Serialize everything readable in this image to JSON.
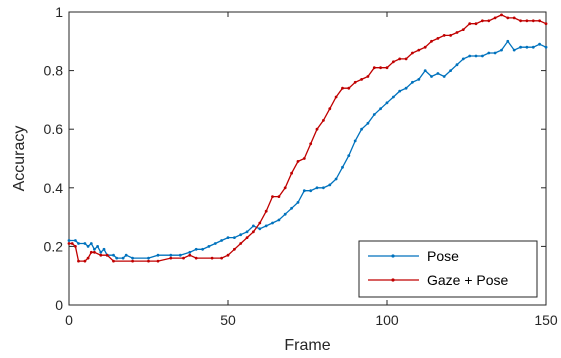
{
  "chart_data": {
    "type": "line",
    "xlabel": "Frame",
    "ylabel": "Accuracy",
    "xlim": [
      0,
      150
    ],
    "ylim": [
      0,
      1
    ],
    "xticks": [
      0,
      50,
      100,
      150
    ],
    "xtick_labels": [
      "0",
      "50",
      "100",
      "150"
    ],
    "yticks": [
      0,
      0.2,
      0.4,
      0.6,
      0.8,
      1
    ],
    "ytick_labels": [
      "0",
      "0.2",
      "0.4",
      "0.6",
      "0.8",
      "1"
    ],
    "grid": false,
    "legend_position": "bottom-right",
    "series": [
      {
        "name": "Pose",
        "color": "#0072BD",
        "points": [
          [
            0,
            0.22
          ],
          [
            2,
            0.22
          ],
          [
            3,
            0.21
          ],
          [
            5,
            0.21
          ],
          [
            6,
            0.2
          ],
          [
            7,
            0.21
          ],
          [
            8,
            0.19
          ],
          [
            9,
            0.2
          ],
          [
            10,
            0.18
          ],
          [
            11,
            0.19
          ],
          [
            12,
            0.17
          ],
          [
            14,
            0.17
          ],
          [
            15,
            0.16
          ],
          [
            17,
            0.16
          ],
          [
            18,
            0.17
          ],
          [
            20,
            0.16
          ],
          [
            25,
            0.16
          ],
          [
            28,
            0.17
          ],
          [
            32,
            0.17
          ],
          [
            35,
            0.17
          ],
          [
            38,
            0.18
          ],
          [
            40,
            0.19
          ],
          [
            42,
            0.19
          ],
          [
            44,
            0.2
          ],
          [
            46,
            0.21
          ],
          [
            48,
            0.22
          ],
          [
            50,
            0.23
          ],
          [
            52,
            0.23
          ],
          [
            54,
            0.24
          ],
          [
            56,
            0.25
          ],
          [
            58,
            0.27
          ],
          [
            60,
            0.26
          ],
          [
            62,
            0.27
          ],
          [
            64,
            0.28
          ],
          [
            66,
            0.29
          ],
          [
            68,
            0.31
          ],
          [
            70,
            0.33
          ],
          [
            72,
            0.35
          ],
          [
            74,
            0.39
          ],
          [
            76,
            0.39
          ],
          [
            78,
            0.4
          ],
          [
            80,
            0.4
          ],
          [
            82,
            0.41
          ],
          [
            84,
            0.43
          ],
          [
            86,
            0.47
          ],
          [
            88,
            0.51
          ],
          [
            90,
            0.56
          ],
          [
            92,
            0.6
          ],
          [
            94,
            0.62
          ],
          [
            96,
            0.65
          ],
          [
            98,
            0.67
          ],
          [
            100,
            0.69
          ],
          [
            102,
            0.71
          ],
          [
            104,
            0.73
          ],
          [
            106,
            0.74
          ],
          [
            108,
            0.76
          ],
          [
            110,
            0.77
          ],
          [
            112,
            0.8
          ],
          [
            114,
            0.78
          ],
          [
            116,
            0.79
          ],
          [
            118,
            0.78
          ],
          [
            120,
            0.8
          ],
          [
            122,
            0.82
          ],
          [
            124,
            0.84
          ],
          [
            126,
            0.85
          ],
          [
            128,
            0.85
          ],
          [
            130,
            0.85
          ],
          [
            132,
            0.86
          ],
          [
            134,
            0.86
          ],
          [
            136,
            0.87
          ],
          [
            138,
            0.9
          ],
          [
            140,
            0.87
          ],
          [
            142,
            0.88
          ],
          [
            144,
            0.88
          ],
          [
            146,
            0.88
          ],
          [
            148,
            0.89
          ],
          [
            150,
            0.88
          ]
        ]
      },
      {
        "name": "Gaze + Pose",
        "color": "#C00000",
        "points": [
          [
            0,
            0.21
          ],
          [
            1,
            0.21
          ],
          [
            2,
            0.2
          ],
          [
            3,
            0.15
          ],
          [
            5,
            0.15
          ],
          [
            6,
            0.16
          ],
          [
            7,
            0.18
          ],
          [
            8,
            0.18
          ],
          [
            10,
            0.17
          ],
          [
            12,
            0.17
          ],
          [
            14,
            0.15
          ],
          [
            20,
            0.15
          ],
          [
            25,
            0.15
          ],
          [
            28,
            0.15
          ],
          [
            32,
            0.16
          ],
          [
            36,
            0.16
          ],
          [
            38,
            0.17
          ],
          [
            40,
            0.16
          ],
          [
            45,
            0.16
          ],
          [
            48,
            0.16
          ],
          [
            50,
            0.17
          ],
          [
            52,
            0.19
          ],
          [
            54,
            0.21
          ],
          [
            56,
            0.23
          ],
          [
            58,
            0.25
          ],
          [
            60,
            0.28
          ],
          [
            62,
            0.32
          ],
          [
            64,
            0.37
          ],
          [
            66,
            0.37
          ],
          [
            68,
            0.4
          ],
          [
            70,
            0.45
          ],
          [
            72,
            0.49
          ],
          [
            74,
            0.5
          ],
          [
            76,
            0.55
          ],
          [
            78,
            0.6
          ],
          [
            80,
            0.63
          ],
          [
            82,
            0.67
          ],
          [
            84,
            0.71
          ],
          [
            86,
            0.74
          ],
          [
            88,
            0.74
          ],
          [
            90,
            0.76
          ],
          [
            92,
            0.77
          ],
          [
            94,
            0.78
          ],
          [
            96,
            0.81
          ],
          [
            98,
            0.81
          ],
          [
            100,
            0.81
          ],
          [
            102,
            0.83
          ],
          [
            104,
            0.84
          ],
          [
            106,
            0.84
          ],
          [
            108,
            0.86
          ],
          [
            110,
            0.87
          ],
          [
            112,
            0.88
          ],
          [
            114,
            0.9
          ],
          [
            116,
            0.91
          ],
          [
            118,
            0.92
          ],
          [
            120,
            0.92
          ],
          [
            122,
            0.93
          ],
          [
            124,
            0.94
          ],
          [
            126,
            0.96
          ],
          [
            128,
            0.96
          ],
          [
            130,
            0.97
          ],
          [
            132,
            0.97
          ],
          [
            134,
            0.98
          ],
          [
            136,
            0.99
          ],
          [
            138,
            0.98
          ],
          [
            140,
            0.98
          ],
          [
            142,
            0.97
          ],
          [
            144,
            0.97
          ],
          [
            146,
            0.97
          ],
          [
            148,
            0.97
          ],
          [
            150,
            0.96
          ]
        ]
      }
    ]
  }
}
